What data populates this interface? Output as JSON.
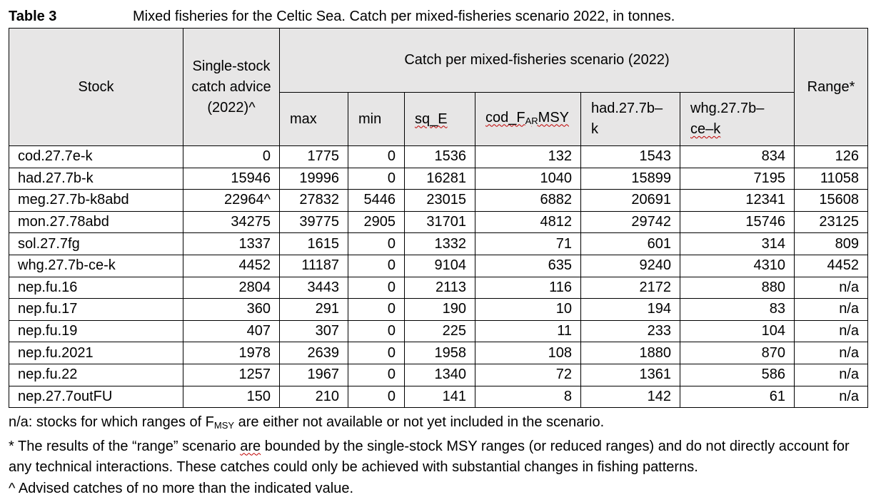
{
  "caption": {
    "label": "Table 3",
    "text": "Mixed fisheries for the Celtic Sea. Catch per mixed-fisheries scenario 2022, in tonnes."
  },
  "header": {
    "stock": "Stock",
    "advice": "Single-stock catch advice (2022)^",
    "scenario_group": "Catch per mixed-fisheries scenario (2022)",
    "range": "Range*",
    "scenarios": {
      "max": "max",
      "min": "min",
      "sq_e": "sq_E",
      "cod_pre": "cod_F",
      "cod_sub": "AR",
      "cod_post": "MSY",
      "had_a": "had.27.7b–",
      "had_b": "k",
      "whg_a": "whg.27.7b–",
      "whg_b": "ce–k"
    }
  },
  "rows": [
    {
      "stock": "cod.27.7e-k",
      "advice": "0",
      "max": "1775",
      "min": "0",
      "sq_e": "1536",
      "cod": "132",
      "had": "1543",
      "whg": "834",
      "range": "126"
    },
    {
      "stock": "had.27.7b-k",
      "advice": "15946",
      "max": "19996",
      "min": "0",
      "sq_e": "16281",
      "cod": "1040",
      "had": "15899",
      "whg": "7195",
      "range": "11058"
    },
    {
      "stock": "meg.27.7b-k8abd",
      "advice": "22964^",
      "max": "27832",
      "min": "5446",
      "sq_e": "23015",
      "cod": "6882",
      "had": "20691",
      "whg": "12341",
      "range": "15608"
    },
    {
      "stock": "mon.27.78abd",
      "advice": "34275",
      "max": "39775",
      "min": "2905",
      "sq_e": "31701",
      "cod": "4812",
      "had": "29742",
      "whg": "15746",
      "range": "23125"
    },
    {
      "stock": "sol.27.7fg",
      "advice": "1337",
      "max": "1615",
      "min": "0",
      "sq_e": "1332",
      "cod": "71",
      "had": "601",
      "whg": "314",
      "range": "809"
    },
    {
      "stock": "whg.27.7b-ce-k",
      "advice": "4452",
      "max": "11187",
      "min": "0",
      "sq_e": "9104",
      "cod": "635",
      "had": "9240",
      "whg": "4310",
      "range": "4452"
    },
    {
      "stock": "nep.fu.16",
      "advice": "2804",
      "max": "3443",
      "min": "0",
      "sq_e": "2113",
      "cod": "116",
      "had": "2172",
      "whg": "880",
      "range": "n/a"
    },
    {
      "stock": "nep.fu.17",
      "advice": "360",
      "max": "291",
      "min": "0",
      "sq_e": "190",
      "cod": "10",
      "had": "194",
      "whg": "83",
      "range": "n/a"
    },
    {
      "stock": "nep.fu.19",
      "advice": "407",
      "max": "307",
      "min": "0",
      "sq_e": "225",
      "cod": "11",
      "had": "233",
      "whg": "104",
      "range": "n/a"
    },
    {
      "stock": "nep.fu.2021",
      "advice": "1978",
      "max": "2639",
      "min": "0",
      "sq_e": "1958",
      "cod": "108",
      "had": "1880",
      "whg": "870",
      "range": "n/a"
    },
    {
      "stock": "nep.fu.22",
      "advice": "1257",
      "max": "1967",
      "min": "0",
      "sq_e": "1340",
      "cod": "72",
      "had": "1361",
      "whg": "586",
      "range": "n/a"
    },
    {
      "stock": "nep.27.7outFU",
      "advice": "150",
      "max": "210",
      "min": "0",
      "sq_e": "141",
      "cod": "8",
      "had": "142",
      "whg": "61",
      "range": "n/a"
    }
  ],
  "notes": {
    "na_pre": "n/a: stocks for which ranges of F",
    "na_sub": "MSY",
    "na_post": " are either not available or not yet included in the scenario.",
    "star_pre": "* The results of the “range” scenario ",
    "star_are": "are",
    "star_post": " bounded by the single-stock MSY ranges (or reduced ranges) and do not directly account for any technical interactions. These catches could only be achieved with substantial changes in fishing patterns.",
    "caret": "^ Advised catches of no more than the indicated value."
  }
}
